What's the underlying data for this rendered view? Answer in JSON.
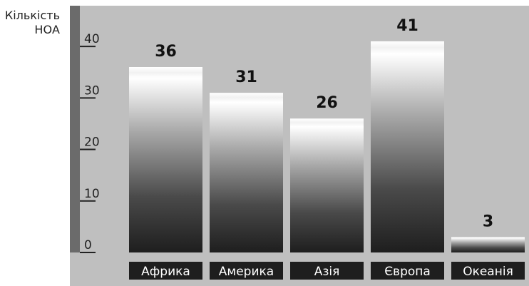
{
  "chart_data": {
    "type": "bar",
    "ylabel": "Кількість НОА",
    "categories": [
      "Африка",
      "Америка",
      "Азія",
      "Європа",
      "Океанія"
    ],
    "values": [
      36,
      31,
      26,
      41,
      3
    ],
    "ylim": [
      0,
      45
    ],
    "yticks": [
      0,
      10,
      20,
      30,
      40
    ],
    "grid": false,
    "colors": {
      "plot_background": "#bfbfbf",
      "axis_bar": "#6b6b6b",
      "bar_top": "#ffffff",
      "bar_bottom": "#1e1e1e",
      "label_strip": "#1e1e1e"
    }
  }
}
